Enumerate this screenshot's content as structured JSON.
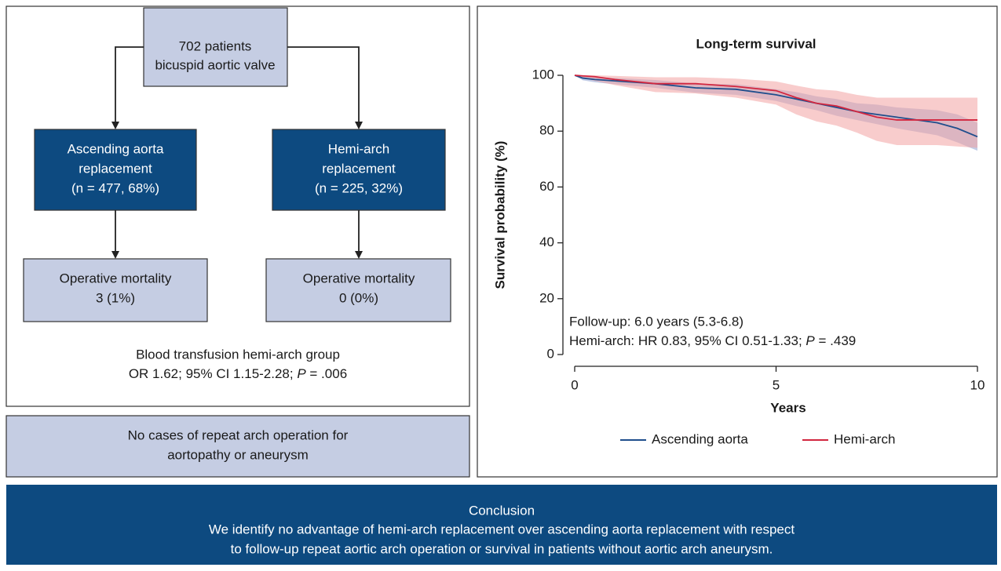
{
  "flowchart": {
    "top": [
      "702 patients",
      "bicuspid aortic valve"
    ],
    "groups": [
      {
        "box": [
          "Ascending aorta",
          "replacement",
          "(n = 477, 68%)"
        ],
        "outcome": [
          "Operative mortality",
          "3 (1%)"
        ]
      },
      {
        "box": [
          "Hemi-arch",
          "replacement",
          "(n = 225, 32%)"
        ],
        "outcome": [
          "Operative mortality",
          "0 (0%)"
        ]
      }
    ],
    "note": [
      "Blood transfusion hemi-arch group",
      [
        "OR 1.62; 95% CI 1.15-2.28; ",
        "P",
        " = .006"
      ]
    ],
    "repeat": [
      "No cases of repeat arch operation for",
      "aortopathy or aneurysm"
    ]
  },
  "chart_data": {
    "type": "line",
    "title": "Long-term survival",
    "x_label": "Years",
    "y_label": "Survival probability (%)",
    "x": [
      0,
      0.2,
      0.5,
      1,
      2,
      3,
      4,
      5,
      5.5,
      6,
      6.5,
      7,
      7.5,
      8,
      9,
      9.5,
      10
    ],
    "series": [
      {
        "name": "Ascending aorta",
        "color": "#1f4e8c",
        "band_color": "#8fa3d2",
        "values": [
          100,
          99,
          98.5,
          98,
          97,
          95.5,
          95,
          93,
          91.5,
          90,
          88.5,
          87,
          86,
          85,
          83,
          81,
          78
        ],
        "lower": [
          100,
          98.2,
          97.5,
          96.8,
          95.5,
          93.8,
          93,
          90.8,
          89,
          87.5,
          85.5,
          84,
          82.5,
          81,
          78.5,
          76,
          73
        ],
        "upper": [
          100,
          99.8,
          99.3,
          99,
          98.3,
          97,
          96.8,
          95,
          94,
          92.5,
          91.5,
          90,
          89.5,
          88.5,
          87.5,
          86,
          83
        ]
      },
      {
        "name": "Hemi-arch",
        "color": "#d2263f",
        "band_color": "#f3a3a3",
        "values": [
          100,
          99.8,
          99.5,
          98.5,
          97,
          97,
          96,
          94.5,
          92,
          90,
          89,
          87,
          85,
          84,
          84,
          84,
          84
        ],
        "lower": [
          100,
          99,
          98,
          96.5,
          94,
          93.5,
          92,
          89.5,
          86,
          83.5,
          82,
          79.5,
          76.5,
          75,
          75,
          74.5,
          74
        ],
        "upper": [
          100,
          100,
          100,
          99.8,
          99.3,
          99.3,
          98.8,
          97.8,
          96.3,
          95,
          94.5,
          93,
          92,
          92,
          92,
          92,
          92
        ]
      }
    ],
    "xlim": [
      0,
      10
    ],
    "xticks": [
      0,
      5,
      10
    ],
    "ylim": [
      0,
      100
    ],
    "yticks": [
      0,
      20,
      40,
      60,
      80,
      100
    ],
    "annotations": [
      "Follow-up: 6.0 years (5.3-6.8)",
      [
        "Hemi-arch: HR 0.83, 95% CI 0.51-1.33; ",
        "P",
        " = .439"
      ]
    ]
  },
  "conclusion": [
    "Conclusion",
    "We identify no advantage of hemi-arch replacement over ascending aorta replacement with respect",
    "to follow-up repeat aortic arch operation or survival in patients without aortic arch aneurysm."
  ]
}
